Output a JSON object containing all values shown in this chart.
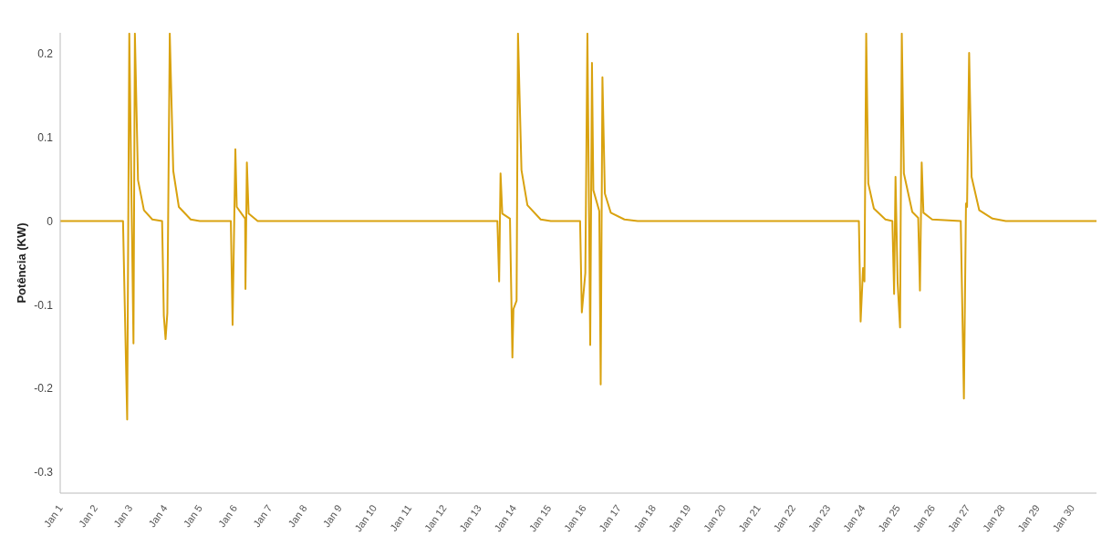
{
  "chart_data": {
    "type": "line",
    "ylabel": "Potência (KW)",
    "color": "#d9a20f",
    "grid": false,
    "legend": false,
    "marker": "none",
    "line_style": "solid",
    "x": [
      "--01-01T00:00",
      "--01-02T19:12",
      "--01-02T20:24",
      "--01-02T22:05",
      "--01-02T23:31",
      "--01-03T02:24",
      "--01-03T03:22",
      "--01-03T05:31",
      "--01-03T09:36",
      "--01-03T15:22",
      "--01-03T22:05",
      "--01-03T23:17",
      "--01-04T00:29",
      "--01-04T01:41",
      "--01-04T03:22",
      "--01-04T05:46",
      "--01-04T09:36",
      "--01-04T17:46",
      "--01-05T00:00",
      "--01-05T21:22",
      "--01-05T22:34",
      "--01-06T00:29",
      "--01-06T01:26",
      "--01-06T05:31",
      "--01-06T07:12",
      "--01-06T07:26",
      "--01-06T08:24",
      "--01-06T09:36",
      "--01-06T15:50",
      "--01-13T12:43",
      "--01-13T13:55",
      "--01-13T14:53",
      "--01-13T16:05",
      "--01-13T21:22",
      "--01-13T23:02",
      "--01-13T23:46",
      "--01-14T01:55",
      "--01-14T02:53",
      "--01-14T05:17",
      "--01-14T09:22",
      "--01-14T18:29",
      "--01-15T01:26",
      "--01-15T21:36",
      "--01-15T22:48",
      "--01-16T01:12",
      "--01-16T02:38",
      "--01-16T04:34",
      "--01-16T05:46",
      "--01-16T06:43",
      "--01-16T10:48",
      "--01-16T11:46",
      "--01-16T12:58",
      "--01-16T14:38",
      "--01-16T18:43",
      "--01-17T04:05",
      "--01-17T13:12",
      "--01-23T21:22",
      "--01-23T22:34",
      "--01-24T00:14",
      "--01-24T01:12",
      "--01-24T02:24",
      "--01-24T03:50",
      "--01-24T07:41",
      "--01-24T15:36",
      "--01-24T20:24",
      "--01-24T21:36",
      "--01-24T22:34",
      "--01-25T00:00",
      "--01-25T01:41",
      "--01-25T02:53",
      "--01-25T04:19",
      "--01-25T10:05",
      "--01-25T14:10",
      "--01-25T15:22",
      "--01-25T16:34",
      "--01-25T17:46",
      "--01-25T23:46",
      "--01-26T19:26",
      "--01-26T21:36",
      "--01-26T23:02",
      "--01-26T23:46",
      "--01-27T01:12",
      "--01-27T02:53",
      "--01-27T08:10",
      "--01-27T17:17",
      "--01-28T02:24",
      "--01-30T16:48"
    ],
    "values": [
      0,
      0,
      -0.1,
      -0.237,
      0.224,
      -0.146,
      0.224,
      0.049,
      0.013,
      0.002,
      0,
      -0.113,
      -0.141,
      -0.11,
      0.224,
      0.06,
      0.017,
      0.002,
      0,
      0,
      -0.124,
      0.086,
      0.017,
      0.007,
      0.003,
      -0.081,
      0.07,
      0.009,
      0,
      0,
      -0.072,
      0.057,
      0.009,
      0.003,
      -0.163,
      -0.105,
      -0.095,
      0.224,
      0.061,
      0.019,
      0.002,
      0,
      0,
      -0.109,
      -0.062,
      0.224,
      -0.148,
      0.189,
      0.037,
      0.012,
      -0.195,
      0.172,
      0.033,
      0.01,
      0.002,
      0,
      0,
      -0.12,
      -0.056,
      -0.072,
      0.224,
      0.045,
      0.015,
      0.002,
      0,
      -0.087,
      0.053,
      -0.073,
      -0.127,
      0.224,
      0.057,
      0.011,
      0.004,
      -0.083,
      0.07,
      0.01,
      0.002,
      0,
      -0.212,
      0.021,
      0.017,
      0.201,
      0.053,
      0.013,
      0.003,
      0,
      0
    ],
    "ylim": [
      -0.325,
      0.225
    ],
    "yticks": [
      0.2,
      0.1,
      0,
      -0.1,
      -0.2,
      -0.3
    ],
    "xlim": [
      "--01-01T00:00",
      "--01-30T16:48"
    ],
    "xticks": [
      {
        "value": "--01-01",
        "label": "Jan 1"
      },
      {
        "value": "--01-02",
        "label": "Jan 2"
      },
      {
        "value": "--01-03",
        "label": "Jan 3"
      },
      {
        "value": "--01-04",
        "label": "Jan 4"
      },
      {
        "value": "--01-05",
        "label": "Jan 5"
      },
      {
        "value": "--01-06",
        "label": "Jan 6"
      },
      {
        "value": "--01-07",
        "label": "Jan 7"
      },
      {
        "value": "--01-08",
        "label": "Jan 8"
      },
      {
        "value": "--01-09",
        "label": "Jan 9"
      },
      {
        "value": "--01-10",
        "label": "Jan 10"
      },
      {
        "value": "--01-11",
        "label": "Jan 11"
      },
      {
        "value": "--01-12",
        "label": "Jan 12"
      },
      {
        "value": "--01-13",
        "label": "Jan 13"
      },
      {
        "value": "--01-14",
        "label": "Jan 14"
      },
      {
        "value": "--01-15",
        "label": "Jan 15"
      },
      {
        "value": "--01-16",
        "label": "Jan 16"
      },
      {
        "value": "--01-17",
        "label": "Jan 17"
      },
      {
        "value": "--01-18",
        "label": "Jan 18"
      },
      {
        "value": "--01-19",
        "label": "Jan 19"
      },
      {
        "value": "--01-20",
        "label": "Jan 20"
      },
      {
        "value": "--01-21",
        "label": "Jan 21"
      },
      {
        "value": "--01-22",
        "label": "Jan 22"
      },
      {
        "value": "--01-23",
        "label": "Jan 23"
      },
      {
        "value": "--01-24",
        "label": "Jan 24"
      },
      {
        "value": "--01-25",
        "label": "Jan 25"
      },
      {
        "value": "--01-26",
        "label": "Jan 26"
      },
      {
        "value": "--01-27",
        "label": "Jan 27"
      },
      {
        "value": "--01-28",
        "label": "Jan 28"
      },
      {
        "value": "--01-29",
        "label": "Jan 29"
      },
      {
        "value": "--01-30",
        "label": "Jan 30"
      }
    ]
  }
}
